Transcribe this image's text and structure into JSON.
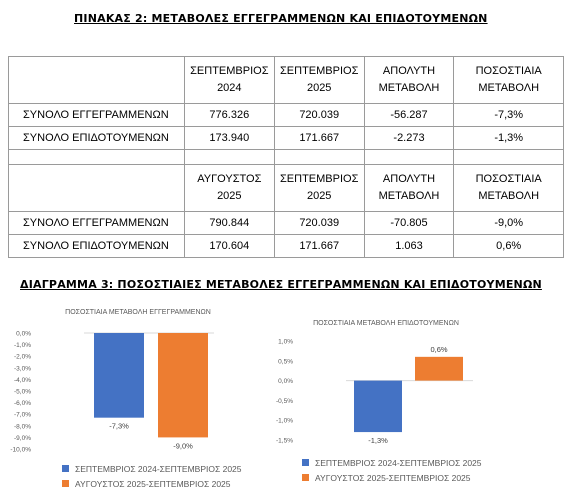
{
  "table_title": "ΠΙΝΑΚΑΣ 2: ΜΕΤΑΒΟΛΕΣ ΕΓΓΕΓΡΑΜΜΕΝΩΝ ΚΑΙ ΕΠΙΔΟΤΟΥΜΕΝΩΝ",
  "table1": {
    "headers": [
      "ΣΕΠΤΕΜΒΡΙΟΣ 2024",
      "ΣΕΠΤΕΜΒΡΙΟΣ 2025",
      "ΑΠΟΛΥΤΗ ΜΕΤΑΒΟΛΗ",
      "ΠΟΣΟΣΤΙΑΙΑ ΜΕΤΑΒΟΛΗ"
    ],
    "rows": [
      {
        "label": "ΣΥΝΟΛΟ ΕΓΓΕΓΡΑΜΜΕΝΩΝ",
        "values": [
          "776.326",
          "720.039",
          "-56.287",
          "-7,3%"
        ]
      },
      {
        "label": "ΣΥΝΟΛΟ ΕΠΙΔΟΤΟΥΜΕΝΩΝ",
        "values": [
          "173.940",
          "171.667",
          "-2.273",
          "-1,3%"
        ]
      }
    ]
  },
  "table2": {
    "headers": [
      "ΑΥΓΟΥΣΤΟΣ 2025",
      "ΣΕΠΤΕΜΒΡΙΟΣ 2025",
      "ΑΠΟΛΥΤΗ ΜΕΤΑΒΟΛΗ",
      "ΠΟΣΟΣΤΙΑΙΑ ΜΕΤΑΒΟΛΗ"
    ],
    "rows": [
      {
        "label": "ΣΥΝΟΛΟ ΕΓΓΕΓΡΑΜΜΕΝΩΝ",
        "values": [
          "790.844",
          "720.039",
          "-70.805",
          "-9,0%"
        ]
      },
      {
        "label": "ΣΥΝΟΛΟ ΕΠΙΔΟΤΟΥΜΕΝΩΝ",
        "values": [
          "170.604",
          "171.667",
          "1.063",
          "0,6%"
        ]
      }
    ]
  },
  "diagram_title": "ΔΙΑΓΡΑΜΜΑ 3: ΠΟΣΟΣΤΙΑΙΕΣ ΜΕΤΑΒΟΛΕΣ ΕΓΓΕΓΡΑΜΜΕΝΩΝ ΚΑΙ ΕΠΙΔΟΤΟΥΜΕΝΩΝ",
  "chart_data": [
    {
      "type": "bar",
      "title": "ΠΟΣΟΣΤΙΑΙΑ ΜΕΤΑΒΟΛΗ ΕΓΓΕΓΡΑΜΜΕΝΩΝ",
      "ylim": [
        -10,
        0
      ],
      "yticks": [
        "0,0%",
        "-1,0%",
        "-2,0%",
        "-3,0%",
        "-4,0%",
        "-5,0%",
        "-6,0%",
        "-7,0%",
        "-8,0%",
        "-9,0%",
        "-10,0%"
      ],
      "series": [
        {
          "name": "ΣΕΠΤΕΜΒΡΙΟΣ 2024-ΣΕΠΤΕΜΒΡΙΟΣ 2025",
          "value": -7.3,
          "label": "-7,3%",
          "color": "#4472C4"
        },
        {
          "name": "ΑΥΓΟΥΣΤΟΣ 2025-ΣΕΠΤΕΜΒΡΙΟΣ 2025",
          "value": -9.0,
          "label": "-9,0%",
          "color": "#ED7D31"
        }
      ],
      "legend": "bottom"
    },
    {
      "type": "bar",
      "title": "ΠΟΣΟΣΤΙΑΙΑ ΜΕΤΑΒΟΛΗ ΕΠΙΔΟΤΟΥΜΕΝΩΝ",
      "ylim": [
        -1.5,
        1.0
      ],
      "yticks": [
        "1,0%",
        "0,5%",
        "0,0%",
        "-0,5%",
        "-1,0%",
        "-1,5%"
      ],
      "series": [
        {
          "name": "ΣΕΠΤΕΜΒΡΙΟΣ 2024-ΣΕΠΤΕΜΒΡΙΟΣ 2025",
          "value": -1.3,
          "label": "-1,3%",
          "color": "#4472C4"
        },
        {
          "name": "ΑΥΓΟΥΣΤΟΣ 2025-ΣΕΠΤΕΜΒΡΙΟΣ 2025",
          "value": 0.6,
          "label": "0,6%",
          "color": "#ED7D31"
        }
      ],
      "legend": "bottom"
    }
  ]
}
